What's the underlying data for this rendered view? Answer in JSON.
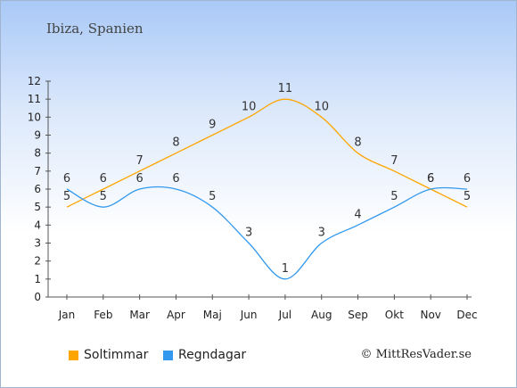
{
  "header": {
    "location": "Ibiza, Spanien"
  },
  "chart_data": {
    "type": "line",
    "categories": [
      "Jan",
      "Feb",
      "Mar",
      "Apr",
      "Maj",
      "Jun",
      "Jul",
      "Aug",
      "Sep",
      "Okt",
      "Nov",
      "Dec"
    ],
    "series": [
      {
        "name": "Soltimmar",
        "color": "#ffa500",
        "values": [
          5,
          6,
          7,
          8,
          9,
          10,
          11,
          10,
          8,
          7,
          6,
          5
        ]
      },
      {
        "name": "Regndagar",
        "color": "#3399ee",
        "values": [
          6,
          5,
          6,
          6,
          5,
          3,
          1,
          3,
          4,
          5,
          6,
          6
        ]
      }
    ],
    "ylim": [
      0,
      12
    ],
    "yticks": [
      "0",
      "1",
      "2",
      "3",
      "4",
      "5",
      "6",
      "7",
      "8",
      "9",
      "10",
      "11",
      "12"
    ],
    "grid": false,
    "legend": "bottom-left"
  },
  "footer": {
    "copyright": "© MittResVader.se"
  }
}
